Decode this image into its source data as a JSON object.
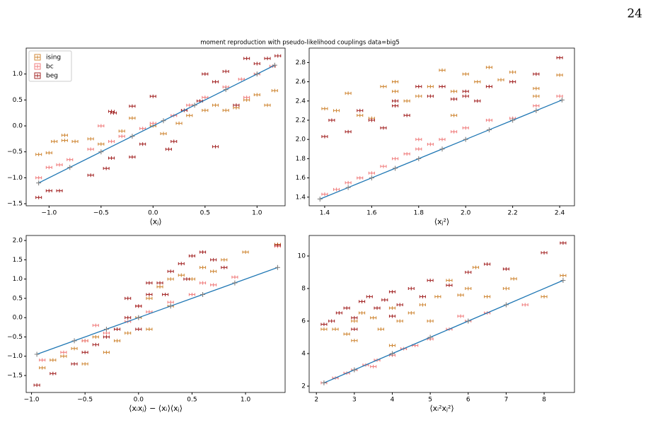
{
  "page_number": "24",
  "title": "moment reproduction with pseudo-likelihood couplings data=big5",
  "chart_data": [
    {
      "type": "scatter",
      "x_label": "⟨xⱼ⟩",
      "legend": "upper left",
      "xlim": [
        -1.22,
        1.27
      ],
      "ylim": [
        -1.54,
        1.5
      ],
      "xticks": [
        {
          "value": -1,
          "label": "−1.0"
        },
        {
          "value": -0.5,
          "label": "−0.5"
        },
        {
          "value": 0,
          "label": "0.0"
        },
        {
          "value": 0.5,
          "label": "0.5"
        },
        {
          "value": 1,
          "label": "1.0"
        }
      ],
      "yticks": [
        {
          "value": -1.5,
          "label": "−1.5"
        },
        {
          "value": -1,
          "label": "−1.0"
        },
        {
          "value": -0.5,
          "label": "−0.5"
        },
        {
          "value": 0,
          "label": "0.0"
        },
        {
          "value": 0.5,
          "label": "0.5"
        },
        {
          "value": 1,
          "label": "1.0"
        }
      ],
      "series": [
        {
          "name": "ising",
          "color": "#d08a3a",
          "x": [
            -1.1,
            -1.0,
            -0.85,
            -0.75,
            -0.6,
            -0.5,
            -0.3,
            -0.2,
            0.0,
            0.1,
            0.25,
            0.35,
            0.5,
            0.6,
            0.7,
            0.8,
            0.9,
            1.0,
            1.1,
            1.17,
            -0.85,
            -0.95
          ],
          "values": [
            -0.55,
            -0.52,
            -0.28,
            -0.3,
            -0.25,
            -0.35,
            -0.1,
            0.15,
            0.0,
            -0.15,
            0.05,
            0.2,
            0.3,
            0.4,
            0.3,
            0.35,
            0.5,
            0.6,
            0.4,
            0.68,
            -0.18,
            -0.3
          ]
        },
        {
          "name": "bc",
          "color": "#f08080",
          "x": [
            -1.1,
            -1.0,
            -0.9,
            -0.8,
            -0.6,
            -0.4,
            -0.3,
            -0.1,
            0.0,
            0.2,
            0.35,
            0.5,
            0.7,
            0.85,
            1.0,
            1.15,
            -0.5,
            0.9
          ],
          "values": [
            -1.0,
            -0.8,
            -0.75,
            -0.65,
            -0.45,
            -0.3,
            -0.2,
            -0.05,
            0.05,
            0.2,
            0.4,
            0.55,
            0.75,
            0.9,
            1.0,
            1.15,
            0.0,
            0.55
          ]
        },
        {
          "name": "beg",
          "color": "#a52a2a",
          "x": [
            -1.1,
            -1.0,
            -0.9,
            -0.6,
            -0.45,
            -0.4,
            -0.4,
            -0.38,
            -0.2,
            -0.1,
            0.0,
            0.15,
            0.2,
            0.3,
            0.45,
            0.5,
            0.6,
            0.7,
            0.8,
            0.9,
            1.0,
            1.1,
            1.2,
            0.6,
            -0.2
          ],
          "values": [
            -1.38,
            -1.25,
            -1.25,
            -0.95,
            -0.82,
            -0.62,
            0.28,
            0.25,
            -0.6,
            -0.35,
            0.57,
            -0.45,
            -0.3,
            0.3,
            0.48,
            1.0,
            0.85,
            1.05,
            0.4,
            1.3,
            1.2,
            1.3,
            1.35,
            -0.4,
            0.38
          ]
        },
        {
          "color": "#808080",
          "line_color": "#1f77b4",
          "x": [
            -1.1,
            -0.8,
            -0.5,
            -0.2,
            0.1,
            0.4,
            0.7,
            1.0,
            1.17
          ],
          "values": [
            -1.1,
            -0.8,
            -0.5,
            -0.2,
            0.1,
            0.4,
            0.7,
            1.0,
            1.17
          ]
        }
      ]
    },
    {
      "type": "scatter",
      "x_label": "⟨xⱼ²⟩",
      "xlim": [
        1.334,
        2.463
      ],
      "ylim": [
        1.31,
        2.95
      ],
      "xticks": [
        1.4,
        1.6,
        1.8,
        {
          "value": 2,
          "label": "2.0"
        },
        2.2,
        2.4
      ],
      "yticks": [
        1.4,
        1.6,
        1.8,
        {
          "value": 2,
          "label": "2.0"
        },
        2.2,
        2.4,
        2.6,
        2.8
      ],
      "series": [
        {
          "color": "#d08a3a",
          "x": [
            1.4,
            1.45,
            1.5,
            1.55,
            1.6,
            1.65,
            1.7,
            1.75,
            1.8,
            1.85,
            1.9,
            1.95,
            2.0,
            2.05,
            2.1,
            2.15,
            2.2,
            2.3,
            2.3,
            2.4,
            1.7,
            1.95
          ],
          "values": [
            2.32,
            2.3,
            2.48,
            2.25,
            2.22,
            2.55,
            2.6,
            2.4,
            2.45,
            2.55,
            2.72,
            2.5,
            2.68,
            2.6,
            2.75,
            2.62,
            2.7,
            2.45,
            2.53,
            2.67,
            2.5,
            2.25
          ]
        },
        {
          "color": "#f08080",
          "x": [
            1.4,
            1.45,
            1.5,
            1.55,
            1.6,
            1.65,
            1.7,
            1.75,
            1.8,
            1.85,
            1.9,
            1.95,
            2.0,
            2.1,
            2.2,
            2.3,
            2.4,
            1.8
          ],
          "values": [
            1.43,
            1.48,
            1.55,
            1.6,
            1.65,
            1.72,
            1.8,
            1.85,
            1.9,
            1.95,
            2.0,
            2.08,
            2.12,
            2.2,
            2.22,
            2.35,
            2.45,
            2.0
          ]
        },
        {
          "color": "#a52a2a",
          "x": [
            1.4,
            1.43,
            1.5,
            1.55,
            1.6,
            1.65,
            1.7,
            1.75,
            1.8,
            1.85,
            1.9,
            1.95,
            2.0,
            2.05,
            2.1,
            2.2,
            2.3,
            2.4,
            1.7,
            2.0
          ],
          "values": [
            2.03,
            2.2,
            2.08,
            2.3,
            2.2,
            2.12,
            2.4,
            2.25,
            2.55,
            2.45,
            2.55,
            2.42,
            2.5,
            2.4,
            2.55,
            2.6,
            2.68,
            2.85,
            2.35,
            2.45
          ]
        },
        {
          "color": "#808080",
          "line_color": "#1f77b4",
          "x": [
            1.38,
            1.5,
            1.6,
            1.7,
            1.8,
            1.9,
            2.0,
            2.1,
            2.2,
            2.3,
            2.41
          ],
          "values": [
            1.38,
            1.5,
            1.6,
            1.7,
            1.8,
            1.9,
            2.0,
            2.1,
            2.2,
            2.3,
            2.41
          ]
        }
      ]
    },
    {
      "type": "scatter",
      "x_label": "⟨xᵢxⱼ⟩ − ⟨xᵢ⟩⟨xⱼ⟩",
      "xlim": [
        -1.05,
        1.37
      ],
      "ylim": [
        -1.94,
        2.13
      ],
      "xticks": [
        {
          "value": -1,
          "label": "−1.0"
        },
        {
          "value": -0.5,
          "label": "−0.5"
        },
        {
          "value": 0,
          "label": "0.0"
        },
        {
          "value": 0.5,
          "label": "0.5"
        },
        {
          "value": 1,
          "label": "1.0"
        }
      ],
      "yticks": [
        {
          "value": -1.5,
          "label": "−1.5"
        },
        {
          "value": -1,
          "label": "−1.0"
        },
        {
          "value": -0.5,
          "label": "−0.5"
        },
        {
          "value": 0,
          "label": "0.0"
        },
        {
          "value": 0.5,
          "label": "0.5"
        },
        {
          "value": 1,
          "label": "1.0"
        },
        {
          "value": 1.5,
          "label": "1.5"
        },
        {
          "value": 2,
          "label": "2.0"
        }
      ],
      "series": [
        {
          "color": "#d08a3a",
          "x": [
            -0.9,
            -0.8,
            -0.7,
            -0.6,
            -0.5,
            -0.4,
            -0.3,
            -0.2,
            -0.1,
            0.0,
            0.1,
            0.2,
            0.3,
            0.4,
            0.5,
            0.6,
            0.7,
            0.8,
            1.0,
            1.3,
            0.3,
            -0.5,
            0.1
          ],
          "values": [
            -1.3,
            -1.1,
            -1.0,
            -0.8,
            -0.6,
            -0.5,
            -0.9,
            -0.6,
            -0.4,
            0.0,
            0.5,
            0.8,
            1.0,
            1.1,
            1.0,
            1.3,
            1.2,
            1.5,
            1.7,
            1.9,
            0.3,
            -1.2,
            -0.3
          ]
        },
        {
          "color": "#f08080",
          "x": [
            -0.9,
            -0.7,
            -0.5,
            -0.3,
            -0.1,
            0.1,
            0.3,
            0.5,
            0.7,
            0.9,
            1.3,
            0.0,
            -0.4,
            0.6
          ],
          "values": [
            -1.1,
            -0.9,
            -0.6,
            -0.4,
            -0.1,
            0.15,
            0.4,
            0.6,
            0.85,
            1.05,
            1.85,
            0.3,
            -0.2,
            0.9
          ]
        },
        {
          "color": "#a52a2a",
          "x": [
            -0.95,
            -0.8,
            -0.6,
            -0.5,
            -0.4,
            -0.3,
            -0.2,
            -0.1,
            0.0,
            0.1,
            0.2,
            0.3,
            0.4,
            0.5,
            0.6,
            0.7,
            0.8,
            -0.1,
            0.1,
            0.25,
            0.0,
            0.45,
            1.3
          ],
          "values": [
            -1.75,
            -1.45,
            -1.2,
            -0.9,
            -0.7,
            -0.5,
            -0.3,
            0.0,
            0.3,
            0.6,
            0.9,
            1.2,
            1.4,
            1.6,
            1.7,
            1.5,
            1.3,
            0.5,
            0.9,
            0.6,
            -0.3,
            1.0,
            1.88
          ]
        },
        {
          "color": "#808080",
          "line_color": "#1f77b4",
          "x": [
            -0.95,
            -0.6,
            -0.3,
            0,
            0.3,
            0.6,
            0.9,
            1.3
          ],
          "values": [
            -0.95,
            -0.6,
            -0.3,
            0,
            0.3,
            0.6,
            0.9,
            1.3
          ]
        }
      ]
    },
    {
      "type": "scatter",
      "x_label": "⟨xᵢ²xⱼ²⟩",
      "xlim": [
        1.81,
        8.8
      ],
      "ylim": [
        1.61,
        11.26
      ],
      "xticks": [
        2,
        3,
        4,
        5,
        6,
        7,
        8
      ],
      "yticks": [
        2,
        4,
        6,
        8,
        10
      ],
      "series": [
        {
          "color": "#d08a3a",
          "x": [
            2.2,
            2.5,
            2.8,
            3.0,
            3.2,
            3.5,
            3.7,
            4.0,
            4.2,
            4.5,
            4.8,
            5.0,
            5.2,
            5.5,
            5.8,
            6.0,
            6.2,
            6.5,
            7.0,
            7.2,
            8.0,
            8.5,
            3.0,
            4.0
          ],
          "values": [
            5.5,
            5.5,
            5.2,
            6.0,
            6.5,
            6.2,
            5.5,
            6.8,
            6.0,
            6.5,
            7.0,
            6.0,
            7.5,
            8.5,
            7.6,
            8.0,
            9.3,
            7.5,
            8.0,
            8.6,
            7.5,
            8.8,
            4.8,
            4.5
          ]
        },
        {
          "color": "#f08080",
          "x": [
            2.2,
            2.5,
            2.8,
            3.0,
            3.3,
            3.6,
            4.0,
            4.3,
            4.6,
            5.0,
            5.5,
            6.0,
            6.5,
            7.5,
            3.5,
            5.8
          ],
          "values": [
            2.2,
            2.5,
            2.8,
            3.0,
            3.3,
            3.6,
            3.9,
            4.3,
            4.5,
            4.9,
            5.5,
            6.0,
            6.5,
            7.0,
            3.2,
            6.3
          ]
        },
        {
          "color": "#a52a2a",
          "x": [
            2.2,
            2.4,
            2.6,
            2.8,
            3.0,
            3.2,
            3.4,
            3.6,
            3.8,
            4.0,
            4.2,
            4.5,
            4.8,
            5.0,
            5.5,
            6.0,
            6.5,
            7.0,
            8.0,
            8.5,
            3.0,
            4.0
          ],
          "values": [
            5.8,
            6.0,
            6.5,
            6.8,
            6.2,
            7.2,
            7.5,
            6.8,
            7.3,
            7.8,
            7.0,
            8.0,
            7.5,
            8.5,
            8.2,
            9.0,
            9.5,
            9.2,
            10.2,
            10.8,
            5.5,
            6.3
          ]
        },
        {
          "color": "#808080",
          "line_color": "#1f77b4",
          "x": [
            2.2,
            3,
            4,
            5,
            6,
            7,
            8.5
          ],
          "values": [
            2.2,
            3,
            4,
            5,
            6,
            7,
            8.5
          ]
        }
      ]
    }
  ]
}
